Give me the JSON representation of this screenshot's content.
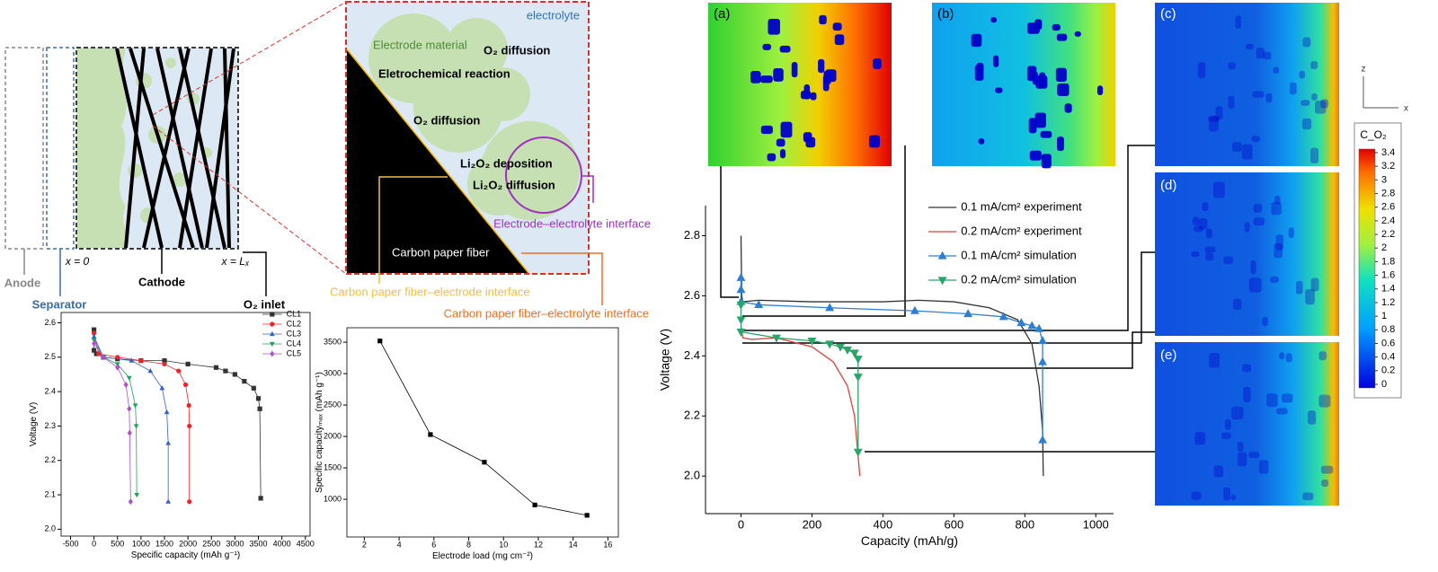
{
  "diagram": {
    "cell": {
      "anode": "Anode",
      "separator": "Separator",
      "cathode": "Cathode",
      "inlet": "O₂ inlet",
      "x0": "x = 0",
      "xl": "x = Lₓ"
    },
    "zoom": {
      "electrolyte": "electrolyte",
      "material": "Electrode material",
      "o2_top": "O₂ diffusion",
      "reaction": "Eletrochemical reaction",
      "o2_mid": "O₂ diffusion",
      "deposition": "Li₂O₂ deposition",
      "li_diff": "Li₂O₂ diffusion",
      "ee_interface": "Electrode–electrolyte interface",
      "fiber": "Carbon paper fiber",
      "fe_interface": "Carbon paper fiber–electrode interface",
      "fel_interface": "Carbon paper fiber–electrolyte interface"
    }
  },
  "panels": [
    "(a)",
    "(b)",
    "(c)",
    "(d)",
    "(e)"
  ],
  "axes_icon": {
    "z": "z",
    "x": "x"
  },
  "colorbar": {
    "title": "C_O₂",
    "ticks": [
      3.4,
      3.2,
      3,
      2.8,
      2.6,
      2.4,
      2.2,
      2,
      1.8,
      1.6,
      1.4,
      1.2,
      1,
      0.8,
      0.6,
      0.4,
      0.2,
      0
    ]
  },
  "chart_data": [
    {
      "type": "line",
      "x_label": "Specific capacity (mAh g⁻¹)",
      "y_label": "Voltage (V)",
      "xlim": [
        -700,
        4600
      ],
      "ylim": [
        1.98,
        2.63
      ],
      "xticks": [
        -500,
        0,
        500,
        1000,
        1500,
        2000,
        2500,
        3000,
        3500,
        4000,
        4500
      ],
      "yticks": [
        {
          "value": 2,
          "label": "2.0"
        },
        2.1,
        2.2,
        2.3,
        2.4,
        2.5,
        2.6
      ],
      "legend": "upper right",
      "series": [
        {
          "name": "CL1",
          "color": "#333333",
          "marker": "square",
          "x": [
            0,
            0,
            50,
            200,
            500,
            1000,
            1500,
            2000,
            2600,
            2800,
            3000,
            3200,
            3400,
            3500,
            3530,
            3550
          ],
          "values": [
            2.58,
            2.52,
            2.51,
            2.5,
            2.495,
            2.49,
            2.49,
            2.48,
            2.47,
            2.46,
            2.45,
            2.43,
            2.41,
            2.38,
            2.35,
            2.09
          ]
        },
        {
          "name": "CL2",
          "color": "#e8262a",
          "marker": "circle",
          "x": [
            0,
            100,
            500,
            1000,
            1500,
            1800,
            1950,
            2020,
            2030,
            2030
          ],
          "values": [
            2.57,
            2.51,
            2.5,
            2.49,
            2.48,
            2.46,
            2.42,
            2.36,
            2.3,
            2.08
          ]
        },
        {
          "name": "CL3",
          "color": "#2f5fd0",
          "marker": "triangle",
          "x": [
            0,
            200,
            800,
            1200,
            1450,
            1550,
            1580,
            1580
          ],
          "values": [
            2.56,
            2.5,
            2.49,
            2.46,
            2.41,
            2.34,
            2.25,
            2.08
          ]
        },
        {
          "name": "CL4",
          "color": "#1fa35a",
          "marker": "down",
          "x": [
            0,
            200,
            500,
            750,
            880,
            900,
            910
          ],
          "values": [
            2.55,
            2.5,
            2.48,
            2.44,
            2.36,
            2.3,
            2.1
          ]
        },
        {
          "name": "CL5",
          "color": "#b04fd6",
          "marker": "diamond",
          "x": [
            0,
            200,
            500,
            680,
            750,
            760,
            780
          ],
          "values": [
            2.54,
            2.5,
            2.47,
            2.42,
            2.35,
            2.28,
            2.08
          ]
        }
      ]
    },
    {
      "type": "line",
      "x_label": "Electrode load (mg cm⁻²)",
      "y_label": "Specific capacityₘₐₓ (mAh g⁻¹)",
      "xlim": [
        1,
        16.6
      ],
      "ylim": [
        400,
        3730
      ],
      "xticks": [
        2,
        4,
        6,
        8,
        10,
        12,
        14,
        16
      ],
      "yticks": [
        1000,
        1500,
        2000,
        2500,
        3000,
        3500
      ],
      "series": [
        {
          "color": "#000000",
          "marker": "square",
          "x": [
            2.9,
            5.8,
            8.9,
            11.8,
            14.8
          ],
          "values": [
            3520,
            2030,
            1590,
            910,
            745
          ]
        }
      ]
    },
    {
      "type": "line",
      "x_label": "Capacity (mAh/g)",
      "y_label": "Voltage (V)",
      "xlim": [
        -100,
        1050
      ],
      "ylim": [
        1.875,
        2.9
      ],
      "xticks": [
        0,
        200,
        400,
        600,
        800,
        1000
      ],
      "yticks": [
        {
          "value": 2,
          "label": "2.0"
        },
        2.2,
        2.4,
        2.6,
        2.8
      ],
      "legend": "upper center",
      "series": [
        {
          "name": "0.1 mA/cm² experiment",
          "color": "#333333",
          "marker": "none",
          "x": [
            0,
            2,
            5,
            50,
            200,
            400,
            500,
            600,
            700,
            780,
            820,
            840,
            850,
            852
          ],
          "values": [
            2.8,
            2.6,
            2.58,
            2.585,
            2.58,
            2.58,
            2.585,
            2.58,
            2.56,
            2.52,
            2.44,
            2.3,
            2.15,
            2.0
          ]
        },
        {
          "name": "0.2 mA/cm² experiment",
          "color": "#e0413a",
          "marker": "none",
          "x": [
            0,
            5,
            30,
            100,
            200,
            260,
            300,
            320,
            335
          ],
          "values": [
            2.5,
            2.46,
            2.455,
            2.46,
            2.43,
            2.38,
            2.3,
            2.2,
            2.0
          ]
        },
        {
          "name": "0.1 mA/cm² simulation",
          "color": "#2f7fd0",
          "marker": "triangle",
          "x": [
            0,
            0,
            0,
            50,
            250,
            490,
            640,
            740,
            790,
            820,
            840,
            850,
            850,
            850
          ],
          "values": [
            2.66,
            2.62,
            2.58,
            2.57,
            2.56,
            2.55,
            2.54,
            2.53,
            2.51,
            2.5,
            2.49,
            2.45,
            2.38,
            2.12
          ]
        },
        {
          "name": "0.2 mA/cm² simulation",
          "color": "#2aa56a",
          "marker": "down",
          "x": [
            0,
            0,
            0,
            100,
            200,
            250,
            280,
            300,
            320,
            330,
            330,
            330
          ],
          "values": [
            2.57,
            2.52,
            2.48,
            2.46,
            2.45,
            2.44,
            2.43,
            2.42,
            2.41,
            2.39,
            2.33,
            2.08
          ]
        }
      ]
    }
  ]
}
